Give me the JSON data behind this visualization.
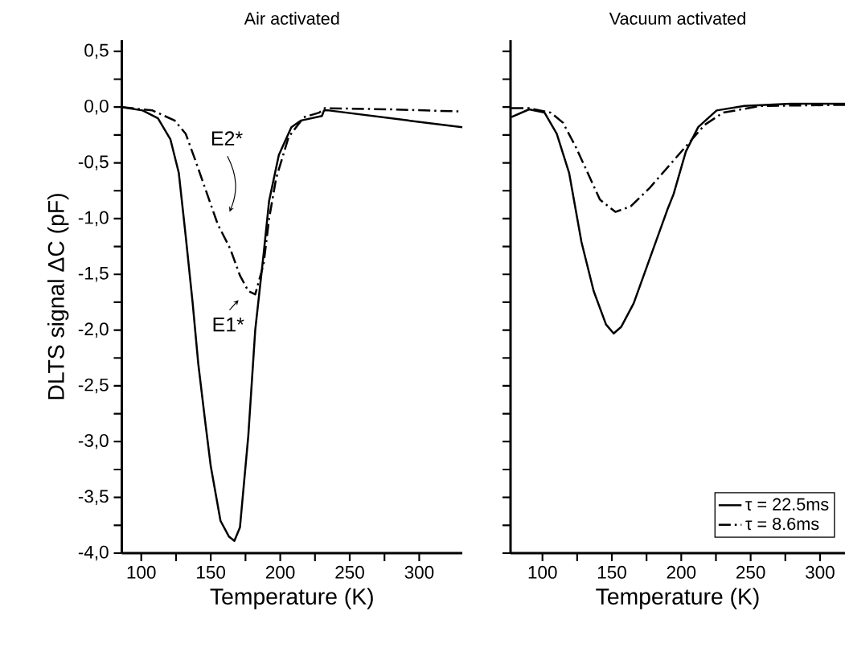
{
  "chart_data": [
    {
      "type": "line",
      "title": "Air activated",
      "xlabel": "Temperature (K)",
      "ylabel": "DLTS signal ΔC (pF)",
      "xlim": [
        86,
        331
      ],
      "ylim": [
        -4.0,
        0.6
      ],
      "xticks": [
        100,
        {
          "value": 125,
          "label": null
        },
        150,
        {
          "value": 175,
          "label": null
        },
        200,
        {
          "value": 225,
          "label": null
        },
        250,
        {
          "value": 275,
          "label": null
        },
        300
      ],
      "yticks": [
        {
          "value": -4.0,
          "label": "-4,0"
        },
        {
          "value": -3.75,
          "label": null
        },
        {
          "value": -3.5,
          "label": "-3,5"
        },
        {
          "value": -3.25,
          "label": null
        },
        {
          "value": -3.0,
          "label": "-3,0"
        },
        {
          "value": -2.75,
          "label": null
        },
        {
          "value": -2.5,
          "label": "-2,5"
        },
        {
          "value": -2.25,
          "label": null
        },
        {
          "value": -2.0,
          "label": "-2,0"
        },
        {
          "value": -1.75,
          "label": null
        },
        {
          "value": -1.5,
          "label": "-1,5"
        },
        {
          "value": -1.25,
          "label": null
        },
        {
          "value": -1.0,
          "label": "-1,0"
        },
        {
          "value": -0.75,
          "label": null
        },
        {
          "value": -0.5,
          "label": "-0,5"
        },
        {
          "value": -0.25,
          "label": null
        },
        {
          "value": 0.0,
          "label": "0,0"
        },
        {
          "value": 0.25,
          "label": null
        },
        {
          "value": 0.5,
          "label": "0,5"
        }
      ],
      "series": [
        {
          "color": "#000000",
          "line_style": "solid",
          "x": [
            86,
            101,
            112,
            121,
            127,
            132,
            137,
            141,
            146,
            150,
            157,
            163,
            167,
            171,
            177,
            182,
            188,
            192,
            199,
            208,
            215,
            230,
            231.5,
            235,
            292,
            331
          ],
          "values": [
            0.0,
            -0.03,
            -0.1,
            -0.29,
            -0.59,
            -1.16,
            -1.76,
            -2.3,
            -2.82,
            -3.22,
            -3.71,
            -3.85,
            -3.89,
            -3.77,
            -2.95,
            -2.0,
            -1.32,
            -0.84,
            -0.43,
            -0.18,
            -0.12,
            -0.08,
            -0.03,
            -0.03,
            -0.12,
            -0.18
          ]
        },
        {
          "color": "#000000",
          "line_style": "dashdot",
          "x": [
            86,
            108,
            124,
            132,
            139,
            146,
            155,
            164,
            171,
            177,
            182,
            188,
            192,
            197,
            206,
            217,
            228,
            232,
            279,
            331
          ],
          "values": [
            0.0,
            -0.03,
            -0.12,
            -0.24,
            -0.48,
            -0.73,
            -1.05,
            -1.27,
            -1.51,
            -1.65,
            -1.68,
            -1.41,
            -1.0,
            -0.64,
            -0.27,
            -0.09,
            -0.05,
            -0.01,
            -0.02,
            -0.04
          ]
        }
      ],
      "annotations": [
        "E2*",
        "E1*"
      ]
    },
    {
      "type": "line",
      "title": "Vacuum activated",
      "xlabel": "Temperature (K)",
      "xlim": [
        77,
        318
      ],
      "ylim": [
        -4.0,
        0.6
      ],
      "tick_labels": "x",
      "legend": "bottom right",
      "xticks": [
        100,
        {
          "value": 125,
          "label": null
        },
        150,
        {
          "value": 175,
          "label": null
        },
        200,
        {
          "value": 225,
          "label": null
        },
        250,
        {
          "value": 275,
          "label": null
        },
        300
      ],
      "yticks": [
        {
          "value": -4.0,
          "label": null
        },
        {
          "value": -3.75,
          "label": null
        },
        {
          "value": -3.5,
          "label": null
        },
        {
          "value": -3.25,
          "label": null
        },
        {
          "value": -3.0,
          "label": null
        },
        {
          "value": -2.75,
          "label": null
        },
        {
          "value": -2.5,
          "label": null
        },
        {
          "value": -2.25,
          "label": null
        },
        {
          "value": -2.0,
          "label": null
        },
        {
          "value": -1.75,
          "label": null
        },
        {
          "value": -1.5,
          "label": null
        },
        {
          "value": -1.25,
          "label": null
        },
        {
          "value": -1.0,
          "label": null
        },
        {
          "value": -0.75,
          "label": null
        },
        {
          "value": -0.5,
          "label": null
        },
        {
          "value": -0.25,
          "label": null
        },
        {
          "value": 0.0,
          "label": null
        },
        {
          "value": 0.25,
          "label": null
        },
        {
          "value": 0.5,
          "label": null
        }
      ],
      "series": [
        {
          "name": "τ = 22.5ms",
          "color": "#000000",
          "line_style": "solid",
          "x": [
            77.6,
            90.4,
            101.5,
            110.3,
            119.2,
            128.1,
            136.9,
            145.8,
            151.3,
            156.8,
            165.7,
            176.7,
            190,
            194.5,
            203.3,
            212.2,
            225.5,
            245.4,
            278.8,
            318
          ],
          "values": [
            -0.09,
            -0.02,
            -0.05,
            -0.24,
            -0.59,
            -1.21,
            -1.65,
            -1.95,
            -2.03,
            -1.97,
            -1.76,
            -1.38,
            -0.92,
            -0.78,
            -0.4,
            -0.18,
            -0.03,
            0.01,
            0.03,
            0.03
          ]
        },
        {
          "name": "τ = 8.6ms",
          "color": "#000000",
          "line_style": "dashdot",
          "x": [
            77.6,
            90.4,
            106,
            114.8,
            123.7,
            132.6,
            141.4,
            152.6,
            163.6,
            176.9,
            190.2,
            203.5,
            216.8,
            230.1,
            256.7,
            318
          ],
          "values": [
            -0.01,
            -0.01,
            -0.05,
            -0.14,
            -0.35,
            -0.59,
            -0.83,
            -0.94,
            -0.89,
            -0.73,
            -0.54,
            -0.35,
            -0.16,
            -0.05,
            0.01,
            0.02
          ]
        }
      ]
    }
  ]
}
